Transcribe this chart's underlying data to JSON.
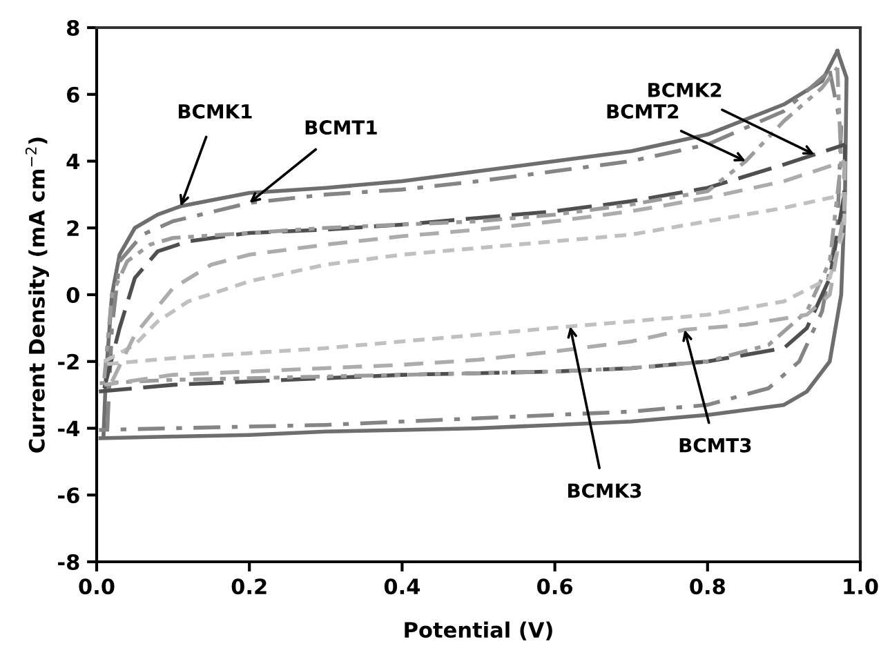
{
  "chart_data": {
    "type": "line",
    "xlabel": "Potential (V)",
    "ylabel": "Current Density (mA cm$^{−2}$)",
    "xlim": [
      0,
      1
    ],
    "ylim": [
      -8,
      8
    ],
    "xticks": [
      {
        "value": 0,
        "label": "0.0"
      },
      {
        "value": 0.2,
        "label": "0.2"
      },
      {
        "value": 0.4,
        "label": "0.4"
      },
      {
        "value": 0.6,
        "label": "0.6"
      },
      {
        "value": 0.8,
        "label": "0.8"
      },
      {
        "value": 1,
        "label": "1.0"
      }
    ],
    "yticks": [
      -8,
      -6,
      -4,
      -2,
      0,
      2,
      4,
      6,
      8
    ],
    "grid": false,
    "legend": false,
    "marker": "none",
    "series": [
      {
        "color": "#6e6e6e",
        "line_style": "solid",
        "x": [
          0.009,
          0.012,
          0.02,
          0.03,
          0.05,
          0.08,
          0.11,
          0.2,
          0.3,
          0.4,
          0.5,
          0.6,
          0.7,
          0.8,
          0.9,
          0.95,
          0.97
        ],
        "values": [
          -4.2,
          -2.5,
          0,
          1.2,
          2.0,
          2.4,
          2.65,
          3.05,
          3.2,
          3.4,
          3.7,
          4.0,
          4.3,
          4.8,
          5.7,
          6.4,
          7.3
        ]
      },
      {
        "color": "#6e6e6e",
        "line_style": "solid",
        "x": [
          0.97,
          0.982,
          0.98,
          0.975,
          0.96,
          0.93,
          0.9,
          0.8,
          0.7,
          0.6,
          0.5,
          0.4,
          0.3,
          0.2,
          0.1,
          0.005
        ],
        "values": [
          7.3,
          6.5,
          3.0,
          0,
          -2.0,
          -2.9,
          -3.3,
          -3.6,
          -3.8,
          -3.9,
          -4.0,
          -4.05,
          -4.1,
          -4.2,
          -4.25,
          -4.3
        ]
      },
      {
        "color": "#858585",
        "line_style": "dashdot",
        "x": [
          0.014,
          0.02,
          0.03,
          0.06,
          0.1,
          0.2,
          0.3,
          0.4,
          0.5,
          0.6,
          0.7,
          0.8,
          0.9,
          0.96
        ],
        "values": [
          -4.0,
          -1,
          1.0,
          1.8,
          2.2,
          2.75,
          3.0,
          3.15,
          3.4,
          3.7,
          4.0,
          4.5,
          5.5,
          6.7
        ]
      },
      {
        "color": "#858585",
        "line_style": "dashdot",
        "x": [
          0.96,
          0.975,
          0.97,
          0.95,
          0.92,
          0.88,
          0.8,
          0.7,
          0.6,
          0.5,
          0.4,
          0.3,
          0.2,
          0.1,
          0.003
        ],
        "values": [
          6.7,
          5,
          2,
          -0.5,
          -2.0,
          -2.8,
          -3.3,
          -3.5,
          -3.6,
          -3.7,
          -3.8,
          -3.9,
          -3.95,
          -4.0,
          -4.05
        ]
      },
      {
        "color": "#4f4f4f",
        "line_style": "dashed",
        "x": [
          0.01,
          0.03,
          0.05,
          0.08,
          0.12,
          0.2,
          0.3,
          0.4,
          0.5,
          0.6,
          0.7,
          0.8,
          0.9,
          0.94,
          0.98
        ],
        "values": [
          -2.8,
          -1,
          0.5,
          1.3,
          1.6,
          1.85,
          1.95,
          2.1,
          2.3,
          2.5,
          2.8,
          3.2,
          3.9,
          4.2,
          4.5
        ]
      },
      {
        "color": "#4f4f4f",
        "line_style": "dashed",
        "x": [
          0.98,
          0.979,
          0.96,
          0.93,
          0.9,
          0.8,
          0.7,
          0.6,
          0.5,
          0.4,
          0.3,
          0.2,
          0.1,
          0.003
        ],
        "values": [
          4.5,
          3,
          0.5,
          -1.0,
          -1.6,
          -2.0,
          -2.2,
          -2.3,
          -2.35,
          -2.4,
          -2.5,
          -2.6,
          -2.7,
          -2.9
        ]
      },
      {
        "color": "#9c9c9c",
        "line_style": "dashdot",
        "x": [
          0.01,
          0.02,
          0.04,
          0.07,
          0.1,
          0.2,
          0.3,
          0.4,
          0.5,
          0.6,
          0.7,
          0.8,
          0.85,
          0.9,
          0.95,
          0.97
        ],
        "values": [
          -2.5,
          0,
          1.0,
          1.5,
          1.7,
          1.85,
          2.0,
          2.1,
          2.2,
          2.4,
          2.7,
          3.1,
          4.0,
          5.2,
          6.2,
          6.8
        ]
      },
      {
        "color": "#9c9c9c",
        "line_style": "dashdot",
        "x": [
          0.97,
          0.975,
          0.96,
          0.93,
          0.88,
          0.8,
          0.7,
          0.6,
          0.5,
          0.4,
          0.3,
          0.2,
          0.1,
          0.004
        ],
        "values": [
          6.8,
          4,
          1,
          -0.5,
          -1.5,
          -2.0,
          -2.2,
          -2.3,
          -2.35,
          -2.4,
          -2.45,
          -2.5,
          -2.55,
          -2.65
        ]
      },
      {
        "color": "#c0c0c0",
        "line_style": "dotted",
        "x": [
          0.01,
          0.05,
          0.08,
          0.12,
          0.2,
          0.3,
          0.4,
          0.5,
          0.6,
          0.7,
          0.8,
          0.9,
          0.98
        ],
        "values": [
          -2.0,
          -1.5,
          -0.8,
          -0.2,
          0.4,
          0.9,
          1.2,
          1.4,
          1.6,
          1.8,
          2.2,
          2.6,
          3.0
        ]
      },
      {
        "color": "#c0c0c0",
        "line_style": "dotted",
        "x": [
          0.98,
          0.979,
          0.96,
          0.9,
          0.8,
          0.7,
          0.62,
          0.5,
          0.4,
          0.3,
          0.2,
          0.1,
          0.003
        ],
        "values": [
          3.0,
          2.0,
          0.5,
          -0.2,
          -0.6,
          -0.8,
          -0.95,
          -1.2,
          -1.4,
          -1.6,
          -1.75,
          -1.9,
          -2.1
        ]
      },
      {
        "color": "#acacac",
        "line_style": "dashed",
        "x": [
          0.02,
          0.05,
          0.1,
          0.15,
          0.2,
          0.3,
          0.4,
          0.5,
          0.6,
          0.7,
          0.8,
          0.9,
          0.98
        ],
        "values": [
          -2.6,
          -1.2,
          0.2,
          0.9,
          1.2,
          1.5,
          1.75,
          1.95,
          2.2,
          2.5,
          2.9,
          3.4,
          4.0
        ]
      },
      {
        "color": "#acacac",
        "line_style": "dashed",
        "x": [
          0.98,
          0.979,
          0.96,
          0.93,
          0.85,
          0.77,
          0.7,
          0.6,
          0.5,
          0.4,
          0.3,
          0.2,
          0.1,
          0.01
        ],
        "values": [
          4.0,
          2.5,
          0,
          -0.6,
          -0.9,
          -1.05,
          -1.4,
          -1.7,
          -1.95,
          -2.1,
          -2.2,
          -2.3,
          -2.4,
          -2.7
        ]
      }
    ],
    "annotations": [
      {
        "text": "BCMK1",
        "x": 0.11,
        "y": 2.65
      },
      {
        "text": "BCMT1",
        "x": 0.2,
        "y": 2.75
      },
      {
        "text": "BCMT2",
        "x": 0.85,
        "y": 4.0
      },
      {
        "text": "BCMK2",
        "x": 0.94,
        "y": 4.2
      },
      {
        "text": "BCMK3",
        "x": 0.62,
        "y": -0.95
      },
      {
        "text": "BCMT3",
        "x": 0.77,
        "y": -1.05
      }
    ]
  }
}
